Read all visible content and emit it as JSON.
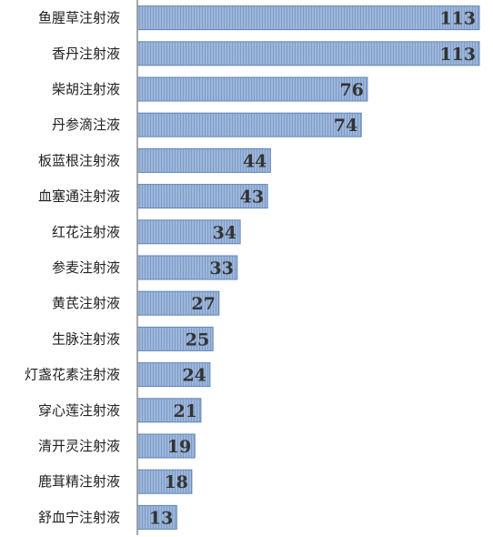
{
  "colors": {
    "bar_fill": "#9db6d9",
    "bar_stroke": "#5f85bb",
    "bar_stripe": "#7f9ecb",
    "axis": "#8c8c8c",
    "label_text": "#222222",
    "value_text": "#333333"
  },
  "chart_data": {
    "type": "bar",
    "orientation": "horizontal",
    "title": "",
    "xlabel": "",
    "ylabel": "",
    "categories": [
      "鱼腥草注射液",
      "香丹注射液",
      "柴胡注射液",
      "丹参滴注液",
      "板蓝根注射液",
      "血塞通注射液",
      "红花注射液",
      "参麦注射液",
      "黄芪注射液",
      "生脉注射液",
      "灯盏花素注射液",
      "穿心莲注射液",
      "清开灵注射液",
      "鹿茸精注射液",
      "舒血宁注射液"
    ],
    "values": [
      113,
      113,
      76,
      74,
      44,
      43,
      34,
      33,
      27,
      25,
      24,
      21,
      19,
      18,
      13
    ],
    "xlim": [
      0,
      113
    ],
    "data_labels": true,
    "grid": false,
    "legend": "none"
  }
}
